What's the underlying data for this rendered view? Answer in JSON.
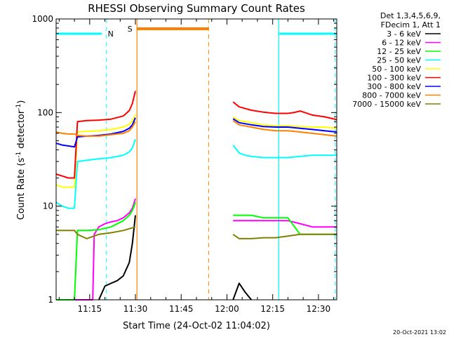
{
  "chart_data": {
    "type": "line",
    "title": "RHESSI Observing Summary Count Rates",
    "xlabel": "Start Time (24-Oct-02 11:04:02)",
    "ylabel_main": "Count Rate (s",
    "ylabel_sup1": "-1",
    "ylabel_mid": " detector",
    "ylabel_sup2": "-1",
    "ylabel_end": ")",
    "yscale": "log",
    "ylim": [
      1,
      1000
    ],
    "xlim_minutes": [
      0,
      92
    ],
    "xticks": [
      {
        "min": 11,
        "label": "11:15"
      },
      {
        "min": 26,
        "label": "11:30"
      },
      {
        "min": 41,
        "label": "11:45"
      },
      {
        "min": 56,
        "label": "12:00"
      },
      {
        "min": 71,
        "label": "12:15"
      },
      {
        "min": 86,
        "label": "12:30"
      }
    ],
    "yticks": [
      {
        "value": 1,
        "label": "1"
      },
      {
        "value": 10,
        "label": "10"
      },
      {
        "value": 100,
        "label": "100"
      },
      {
        "value": 1000,
        "label": "1000"
      }
    ],
    "legend_header": [
      "Det 1,3,4,5,6,9,",
      "FDecim 1, Att 1"
    ],
    "legend_position": "right",
    "footer_timestamp": "20-Oct-2021 13:02",
    "data_gap_minutes": [
      26,
      58
    ],
    "series": [
      {
        "name": "3 - 6 keV",
        "color": "#000000",
        "points": [
          [
            14,
            1
          ],
          [
            16,
            1.4
          ],
          [
            18,
            1.5
          ],
          [
            20,
            1.6
          ],
          [
            22,
            1.8
          ],
          [
            24,
            2.5
          ],
          [
            25,
            4
          ],
          [
            26,
            8
          ],
          [
            58,
            1
          ],
          [
            60,
            1.5
          ],
          [
            62,
            1.2
          ],
          [
            64,
            1
          ]
        ]
      },
      {
        "name": "6 - 12 keV",
        "color": "#ff00ff",
        "points": [
          [
            0,
            1
          ],
          [
            12,
            1
          ],
          [
            12.5,
            5
          ],
          [
            14,
            6
          ],
          [
            16,
            6.5
          ],
          [
            18,
            6.8
          ],
          [
            20,
            7
          ],
          [
            22,
            7.5
          ],
          [
            24,
            8.5
          ],
          [
            25,
            9.5
          ],
          [
            26,
            12
          ],
          [
            58,
            7
          ],
          [
            60,
            7
          ],
          [
            64,
            7
          ],
          [
            68,
            7
          ],
          [
            72,
            7
          ],
          [
            76,
            7
          ],
          [
            80,
            6.5
          ],
          [
            84,
            6
          ],
          [
            88,
            6
          ],
          [
            92,
            6
          ]
        ]
      },
      {
        "name": "12 - 25 keV",
        "color": "#00ff00",
        "points": [
          [
            0,
            1
          ],
          [
            6,
            1
          ],
          [
            7,
            5.5
          ],
          [
            10,
            5.5
          ],
          [
            14,
            5.6
          ],
          [
            18,
            6
          ],
          [
            22,
            7
          ],
          [
            24,
            8
          ],
          [
            25,
            9
          ],
          [
            26,
            11
          ],
          [
            58,
            8
          ],
          [
            60,
            8
          ],
          [
            64,
            8
          ],
          [
            68,
            7.5
          ],
          [
            72,
            7.5
          ],
          [
            76,
            7.5
          ],
          [
            80,
            5
          ],
          [
            84,
            5
          ],
          [
            88,
            5
          ],
          [
            92,
            5
          ]
        ]
      },
      {
        "name": "25 - 50 keV",
        "color": "#00ffff",
        "points": [
          [
            0,
            11
          ],
          [
            2,
            10
          ],
          [
            4,
            9.5
          ],
          [
            6,
            9.5
          ],
          [
            7,
            30
          ],
          [
            10,
            31
          ],
          [
            14,
            32
          ],
          [
            18,
            33
          ],
          [
            22,
            35
          ],
          [
            24,
            38
          ],
          [
            25,
            42
          ],
          [
            26,
            52
          ],
          [
            58,
            45
          ],
          [
            60,
            37
          ],
          [
            62,
            35
          ],
          [
            64,
            34
          ],
          [
            68,
            33
          ],
          [
            72,
            33
          ],
          [
            76,
            33
          ],
          [
            80,
            34
          ],
          [
            84,
            35
          ],
          [
            88,
            35
          ],
          [
            92,
            35
          ]
        ]
      },
      {
        "name": "50 - 100 keV",
        "color": "#ffff00",
        "points": [
          [
            0,
            17
          ],
          [
            2,
            16
          ],
          [
            4,
            16
          ],
          [
            6,
            16
          ],
          [
            7,
            62
          ],
          [
            10,
            63
          ],
          [
            14,
            64
          ],
          [
            18,
            66
          ],
          [
            22,
            70
          ],
          [
            24,
            75
          ],
          [
            25,
            82
          ],
          [
            26,
            95
          ],
          [
            58,
            90
          ],
          [
            60,
            82
          ],
          [
            64,
            78
          ],
          [
            68,
            74
          ],
          [
            72,
            72
          ],
          [
            76,
            72
          ],
          [
            80,
            71
          ],
          [
            84,
            70
          ],
          [
            88,
            70
          ],
          [
            92,
            68
          ]
        ]
      },
      {
        "name": "100 - 300 keV",
        "color": "#ff0000",
        "points": [
          [
            0,
            22
          ],
          [
            2,
            21
          ],
          [
            4,
            20
          ],
          [
            6,
            20
          ],
          [
            7,
            80
          ],
          [
            10,
            82
          ],
          [
            14,
            83
          ],
          [
            18,
            85
          ],
          [
            22,
            92
          ],
          [
            24,
            105
          ],
          [
            25,
            125
          ],
          [
            26,
            170
          ],
          [
            58,
            130
          ],
          [
            60,
            115
          ],
          [
            64,
            106
          ],
          [
            68,
            101
          ],
          [
            72,
            98
          ],
          [
            76,
            98
          ],
          [
            78,
            100
          ],
          [
            80,
            104
          ],
          [
            84,
            94
          ],
          [
            88,
            90
          ],
          [
            92,
            84
          ]
        ]
      },
      {
        "name": "300 - 800 keV",
        "color": "#0000ff",
        "points": [
          [
            0,
            47
          ],
          [
            2,
            45
          ],
          [
            4,
            44
          ],
          [
            6,
            43
          ],
          [
            7,
            55
          ],
          [
            10,
            56
          ],
          [
            14,
            57
          ],
          [
            18,
            59
          ],
          [
            22,
            63
          ],
          [
            24,
            68
          ],
          [
            25,
            74
          ],
          [
            26,
            88
          ],
          [
            58,
            86
          ],
          [
            60,
            78
          ],
          [
            64,
            74
          ],
          [
            68,
            71
          ],
          [
            72,
            70
          ],
          [
            76,
            70
          ],
          [
            80,
            68
          ],
          [
            84,
            66
          ],
          [
            88,
            64
          ],
          [
            92,
            62
          ]
        ]
      },
      {
        "name": "800 - 7000 keV",
        "color": "#ff8000",
        "points": [
          [
            0,
            62
          ],
          [
            2,
            60
          ],
          [
            4,
            59
          ],
          [
            6,
            59
          ],
          [
            7,
            57
          ],
          [
            10,
            56
          ],
          [
            14,
            56
          ],
          [
            18,
            58
          ],
          [
            22,
            60
          ],
          [
            24,
            64
          ],
          [
            25,
            70
          ],
          [
            26,
            80
          ],
          [
            58,
            82
          ],
          [
            60,
            74
          ],
          [
            64,
            70
          ],
          [
            68,
            66
          ],
          [
            72,
            64
          ],
          [
            76,
            64
          ],
          [
            80,
            62
          ],
          [
            84,
            60
          ],
          [
            88,
            58
          ],
          [
            92,
            56
          ]
        ]
      },
      {
        "name": "7000 - 15000 keV",
        "color": "#808000",
        "points": [
          [
            0,
            5.5
          ],
          [
            4,
            5.5
          ],
          [
            6,
            5.5
          ],
          [
            7,
            5
          ],
          [
            10,
            4.5
          ],
          [
            14,
            5
          ],
          [
            18,
            5.2
          ],
          [
            22,
            5.5
          ],
          [
            26,
            6
          ],
          [
            58,
            5
          ],
          [
            60,
            4.5
          ],
          [
            64,
            4.5
          ],
          [
            68,
            4.6
          ],
          [
            72,
            4.6
          ],
          [
            76,
            4.8
          ],
          [
            80,
            5
          ],
          [
            84,
            5
          ],
          [
            88,
            5
          ],
          [
            92,
            5
          ]
        ]
      }
    ],
    "annotations": [
      {
        "label": "N",
        "color": "#00ffff",
        "kind": "night",
        "bar_ranges": [
          [
            0,
            15
          ],
          [
            73,
            92
          ]
        ],
        "dashed_at": [
          16.5,
          91.5
        ],
        "solid_at": [
          73
        ]
      },
      {
        "label": "S",
        "color": "#ff8000",
        "kind": "saa",
        "bar_ranges": [
          [
            26.5,
            50
          ]
        ],
        "dashed_at": [
          50
        ],
        "solid_at": [
          26.5
        ]
      }
    ]
  }
}
